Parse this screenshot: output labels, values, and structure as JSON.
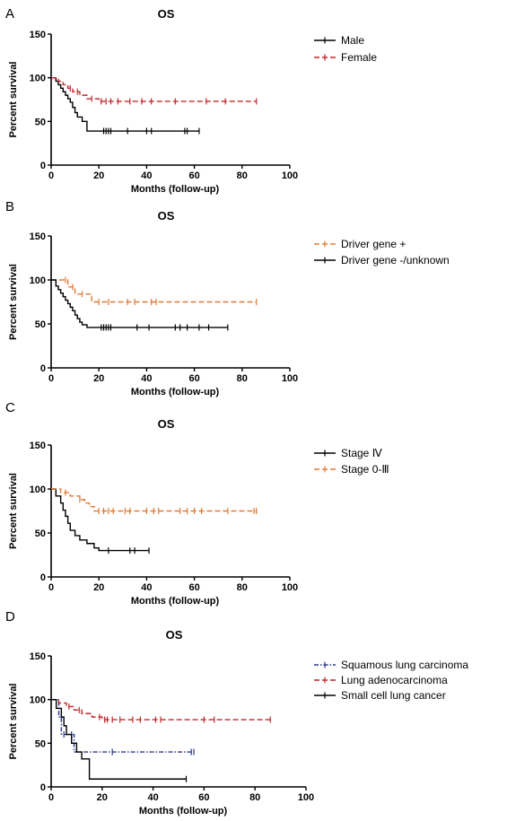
{
  "chart_data": [
    {
      "type": "line",
      "panel": "A",
      "title": "OS",
      "xlabel": "Months (follow-up)",
      "ylabel": "Percent survival",
      "xlim": [
        0,
        100
      ],
      "ylim": [
        0,
        150
      ],
      "xticks": [
        0,
        20,
        40,
        60,
        80,
        100
      ],
      "yticks": [
        0,
        50,
        100,
        150
      ],
      "legend_position": "right",
      "series": [
        {
          "name": "Male",
          "color": "#000000",
          "dash": "solid",
          "steps": [
            [
              0,
              100
            ],
            [
              2,
              96
            ],
            [
              3,
              92
            ],
            [
              4,
              88
            ],
            [
              5,
              84
            ],
            [
              6,
              80
            ],
            [
              7,
              76
            ],
            [
              8,
              72
            ],
            [
              9,
              66
            ],
            [
              10,
              60
            ],
            [
              11,
              55
            ],
            [
              13,
              50
            ],
            [
              15,
              39
            ],
            [
              62,
              39
            ]
          ],
          "censors": [
            22,
            23,
            24,
            25,
            32,
            40,
            42,
            56,
            57,
            62
          ]
        },
        {
          "name": "Female",
          "color": "#c0272d",
          "dash": "dashed",
          "steps": [
            [
              0,
              100
            ],
            [
              3,
              96
            ],
            [
              5,
              92
            ],
            [
              7,
              88
            ],
            [
              9,
              84
            ],
            [
              12,
              80
            ],
            [
              15,
              76
            ],
            [
              20,
              73
            ],
            [
              86,
              73
            ]
          ],
          "censors": [
            8,
            11,
            17,
            21,
            23,
            25,
            28,
            33,
            38,
            42,
            52,
            65,
            73,
            86
          ]
        }
      ]
    },
    {
      "type": "line",
      "panel": "B",
      "title": "OS",
      "xlabel": "Months (follow-up)",
      "ylabel": "Percent survival",
      "xlim": [
        0,
        100
      ],
      "ylim": [
        0,
        150
      ],
      "xticks": [
        0,
        20,
        40,
        60,
        80,
        100
      ],
      "yticks": [
        0,
        50,
        100,
        150
      ],
      "legend_position": "right",
      "series": [
        {
          "name": "Driver gene +",
          "color": "#e07b39",
          "dash": "dashed",
          "steps": [
            [
              0,
              100
            ],
            [
              7,
              92
            ],
            [
              10,
              84
            ],
            [
              17,
              75
            ],
            [
              86,
              75
            ]
          ],
          "censors": [
            6,
            9,
            13,
            20,
            24,
            32,
            35,
            42,
            44,
            86
          ]
        },
        {
          "name": "Driver gene -/unknown",
          "color": "#000000",
          "dash": "solid",
          "steps": [
            [
              0,
              100
            ],
            [
              2,
              93
            ],
            [
              3,
              89
            ],
            [
              4,
              85
            ],
            [
              5,
              81
            ],
            [
              6,
              77
            ],
            [
              7,
              73
            ],
            [
              8,
              69
            ],
            [
              9,
              65
            ],
            [
              10,
              60
            ],
            [
              11,
              56
            ],
            [
              12,
              52
            ],
            [
              13,
              49
            ],
            [
              15,
              46
            ],
            [
              74,
              46
            ]
          ],
          "censors": [
            21,
            22,
            23,
            24,
            25,
            36,
            41,
            52,
            54,
            57,
            62,
            66,
            74
          ]
        }
      ]
    },
    {
      "type": "line",
      "panel": "C",
      "title": "OS",
      "xlabel": "Months (follow-up)",
      "ylabel": "Percent survival",
      "xlim": [
        0,
        100
      ],
      "ylim": [
        0,
        150
      ],
      "xticks": [
        0,
        20,
        40,
        60,
        80,
        100
      ],
      "yticks": [
        0,
        50,
        100,
        150
      ],
      "legend_position": "right",
      "series": [
        {
          "name": "Stage Ⅳ",
          "color": "#000000",
          "dash": "solid",
          "steps": [
            [
              0,
              100
            ],
            [
              2,
              92
            ],
            [
              4,
              84
            ],
            [
              5,
              76
            ],
            [
              6,
              69
            ],
            [
              7,
              61
            ],
            [
              8,
              53
            ],
            [
              10,
              47
            ],
            [
              12,
              42
            ],
            [
              15,
              38
            ],
            [
              18,
              33
            ],
            [
              20,
              30
            ],
            [
              41,
              30
            ]
          ],
          "censors": [
            24,
            33,
            35,
            41
          ]
        },
        {
          "name": "Stage 0-Ⅲ",
          "color": "#e07b39",
          "dash": "dashed",
          "steps": [
            [
              0,
              100
            ],
            [
              4,
              96
            ],
            [
              8,
              92
            ],
            [
              12,
              88
            ],
            [
              14,
              84
            ],
            [
              16,
              80
            ],
            [
              18,
              75
            ],
            [
              86,
              75
            ]
          ],
          "censors": [
            6,
            12,
            20,
            22,
            24,
            26,
            31,
            33,
            40,
            43,
            45,
            54,
            57,
            60,
            63,
            74,
            85,
            86
          ]
        }
      ]
    },
    {
      "type": "line",
      "panel": "D",
      "title": "OS",
      "xlabel": "Months (follow-up)",
      "ylabel": "Percent survival",
      "xlim": [
        0,
        100
      ],
      "ylim": [
        0,
        150
      ],
      "xticks": [
        0,
        20,
        40,
        60,
        80,
        100
      ],
      "yticks": [
        0,
        50,
        100,
        150
      ],
      "legend_position": "right",
      "series": [
        {
          "name": "Squamous lung carcinoma",
          "color": "#2b3a8c",
          "dash": "dashdot",
          "steps": [
            [
              0,
              100
            ],
            [
              3,
              80
            ],
            [
              4,
              60
            ],
            [
              7,
              60
            ],
            [
              9,
              40
            ],
            [
              56,
              40
            ]
          ],
          "censors": [
            5,
            8,
            24,
            55,
            56
          ]
        },
        {
          "name": "Lung adenocarcinoma",
          "color": "#c0272d",
          "dash": "dashed",
          "steps": [
            [
              0,
              100
            ],
            [
              3,
              96
            ],
            [
              6,
              92
            ],
            [
              9,
              88
            ],
            [
              12,
              84
            ],
            [
              16,
              80
            ],
            [
              20,
              77
            ],
            [
              86,
              77
            ]
          ],
          "censors": [
            7,
            11,
            19,
            21,
            22,
            24,
            27,
            32,
            35,
            41,
            43,
            60,
            64,
            86
          ]
        },
        {
          "name": "Small cell lung cancer",
          "color": "#000000",
          "dash": "solid",
          "steps": [
            [
              0,
              100
            ],
            [
              2,
              90
            ],
            [
              4,
              80
            ],
            [
              5,
              70
            ],
            [
              6,
              60
            ],
            [
              8,
              50
            ],
            [
              10,
              40
            ],
            [
              12,
              32
            ],
            [
              15,
              9
            ],
            [
              53,
              9
            ]
          ],
          "censors": [
            53
          ]
        }
      ]
    }
  ]
}
